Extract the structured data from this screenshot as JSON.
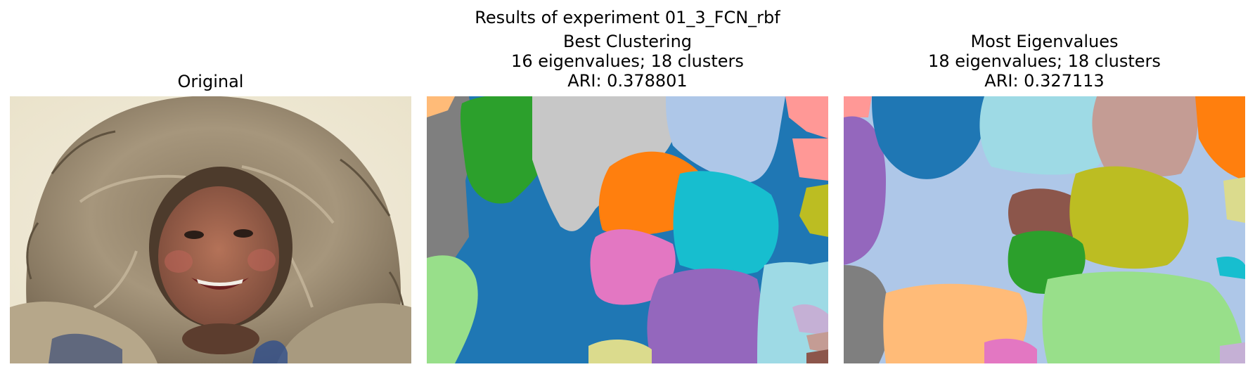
{
  "figure": {
    "title": "Results of experiment 01_3_FCN_rbf"
  },
  "panels": [
    {
      "lines": [
        "Original"
      ],
      "image": "photo of smiling child wearing a fur-trimmed hood"
    },
    {
      "lines": [
        "Best Clustering",
        "16 eigenvalues; 18 clusters",
        "ARI: 0.378801"
      ],
      "image": "segmentation map (18 clusters)"
    },
    {
      "lines": [
        "Most Eigenvalues",
        "18 eigenvalues; 18 clusters",
        "ARI: 0.327113"
      ],
      "image": "segmentation map (18 clusters)"
    }
  ],
  "palette": {
    "blue": "#1f77b4",
    "light_blue": "#aec7e8",
    "orange": "#ff7f0e",
    "light_orange": "#ffbb78",
    "green": "#2ca02c",
    "light_green": "#98df8a",
    "pink_red": "#ff9896",
    "purple": "#9467bd",
    "brown": "#8c564b",
    "rose_brown": "#c49c94",
    "pink": "#e377c2",
    "gray": "#7f7f7f",
    "light_gray": "#c7c7c7",
    "olive": "#bcbd22",
    "light_olive": "#dbdb8d",
    "cyan": "#17becf",
    "light_cyan": "#9edae5",
    "lavender": "#c5b0d5"
  }
}
